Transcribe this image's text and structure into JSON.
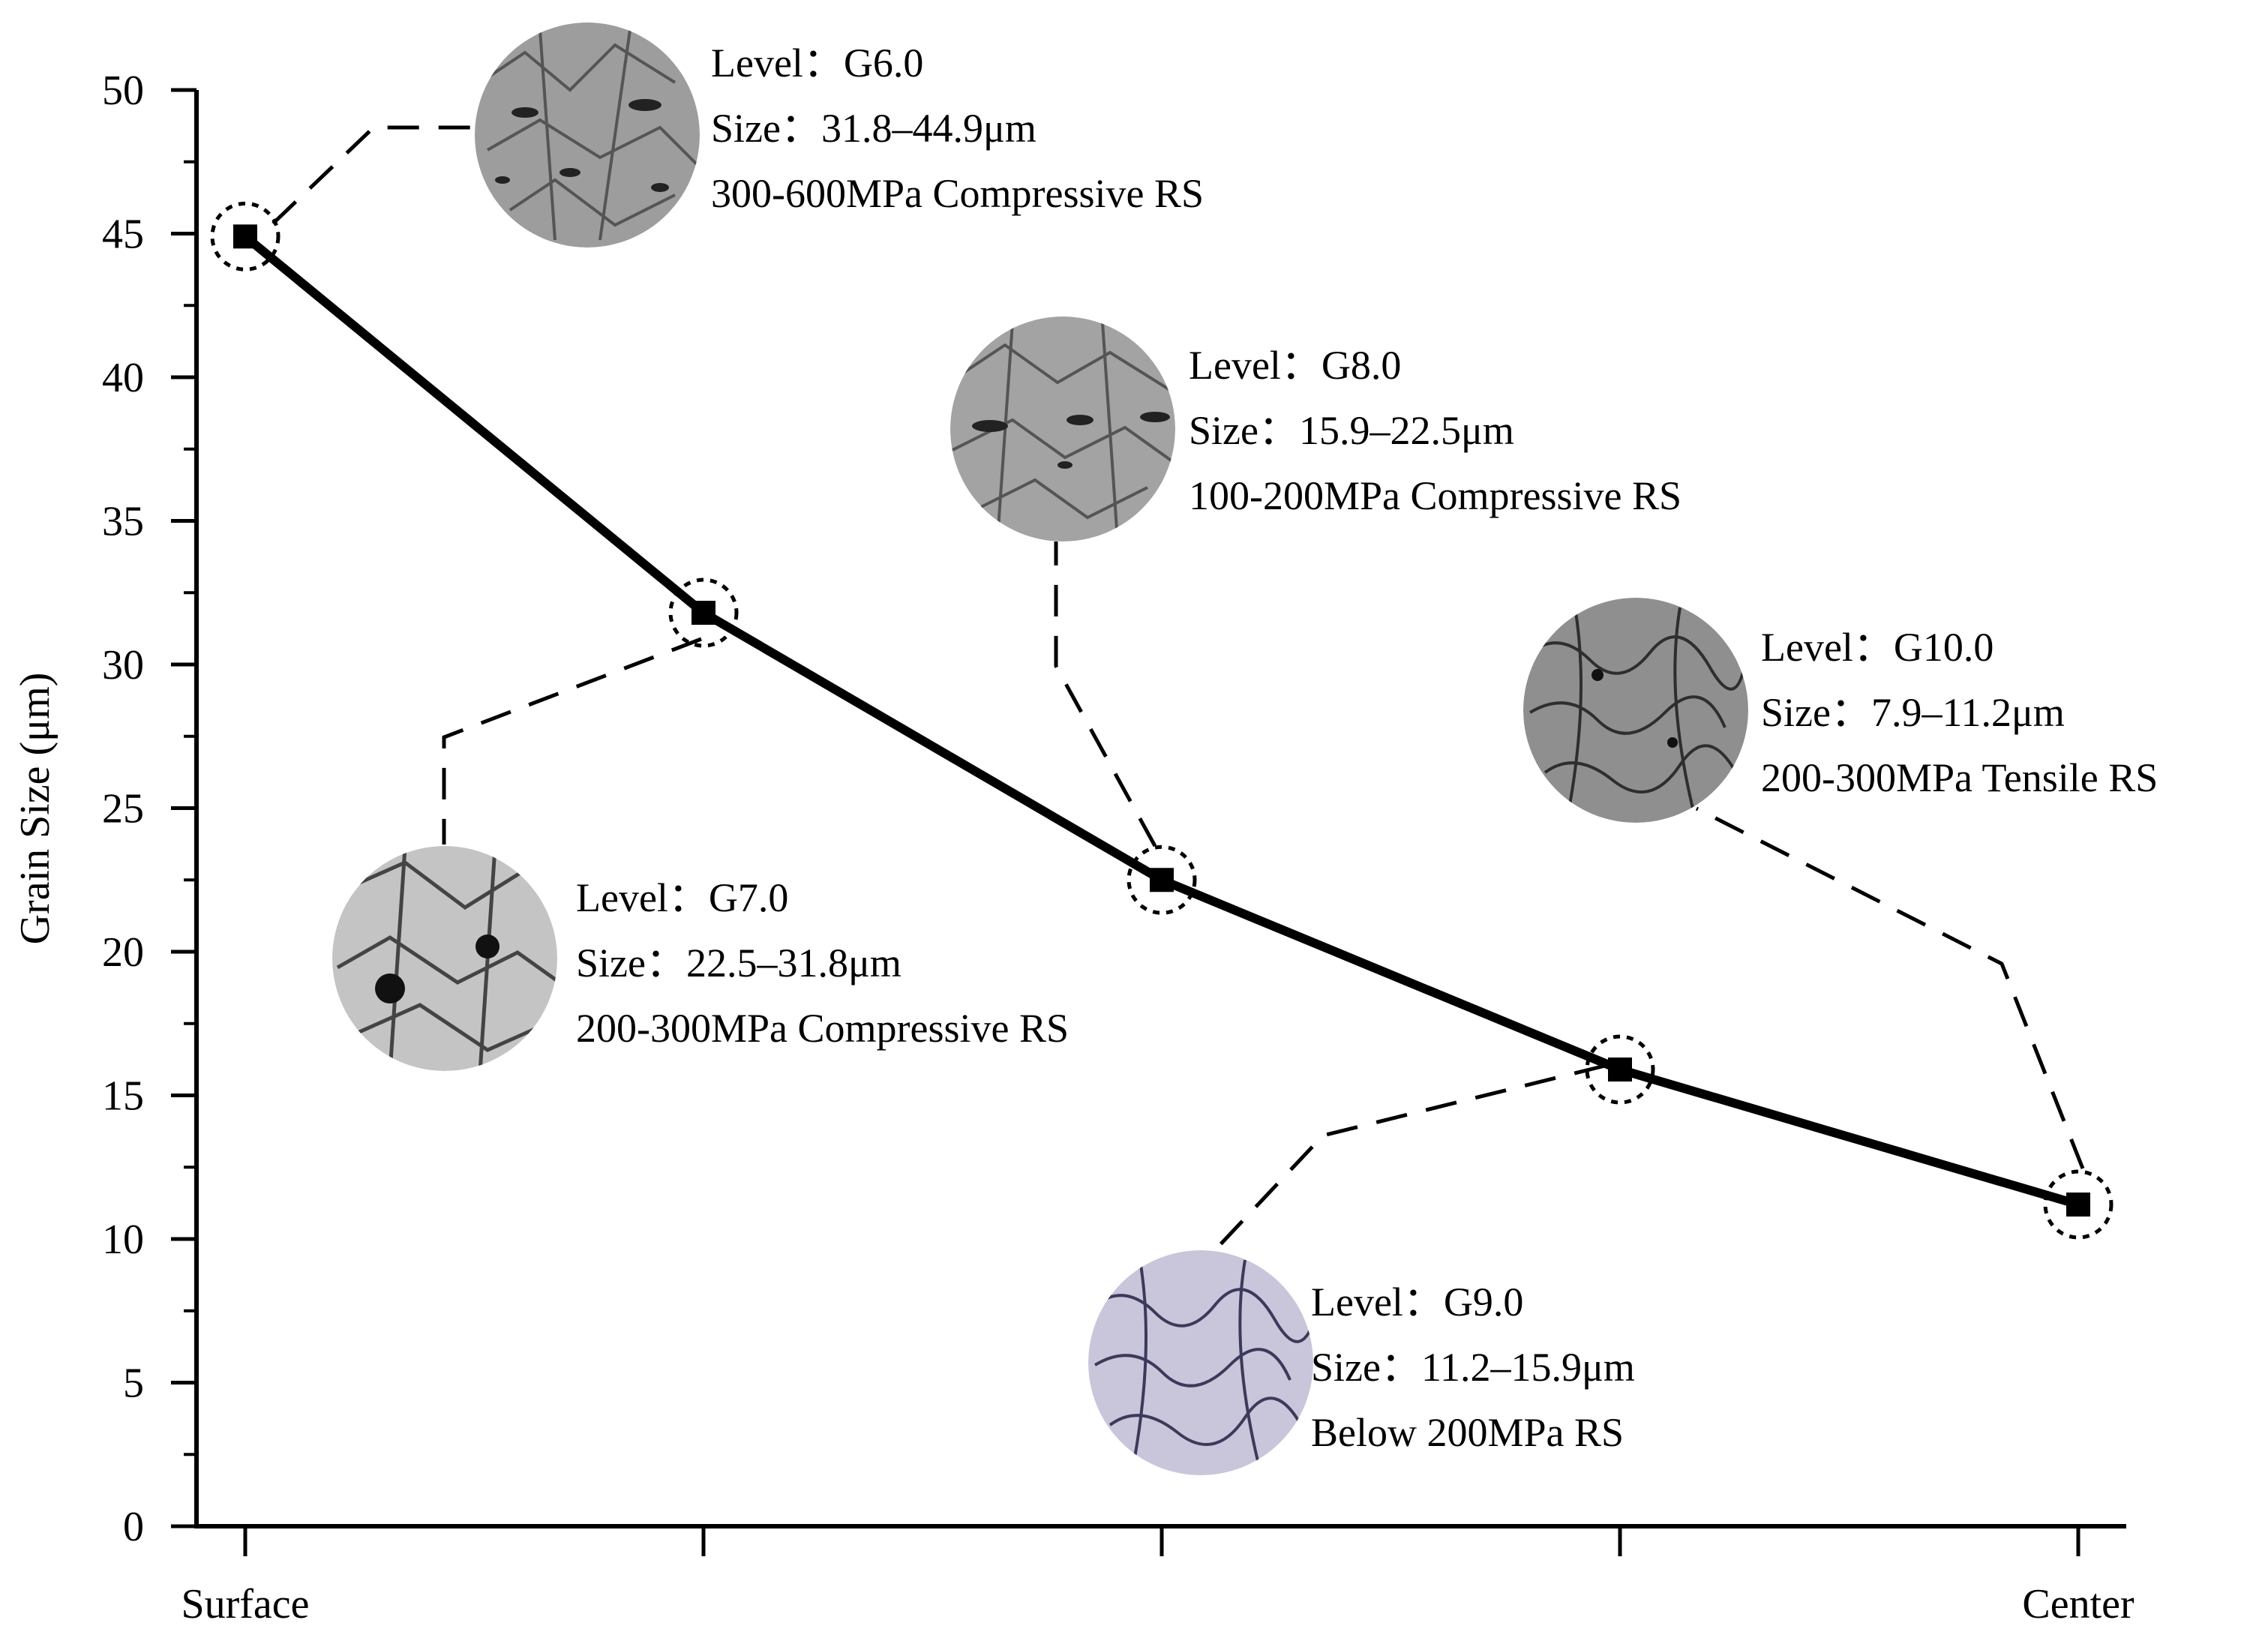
{
  "chart_data": {
    "type": "line",
    "title": "",
    "xlabel": "",
    "ylabel": "Grain Size (μm)",
    "ylim": [
      0,
      50
    ],
    "y_ticks": [
      0,
      5,
      10,
      15,
      20,
      25,
      30,
      35,
      40,
      45,
      50
    ],
    "x_tick_labels": [
      "Surface",
      "",
      "",
      "",
      "Center"
    ],
    "x": [
      0,
      1,
      2,
      3,
      4
    ],
    "series": [
      {
        "values": [
          44.9,
          31.8,
          22.5,
          15.9,
          11.2
        ]
      }
    ],
    "grid": false,
    "colors": {
      "line": "#000000",
      "leader": "#000000"
    },
    "annotations": [
      {
        "point": 0,
        "icon": "micrograph-g6-icon",
        "tone": "#9a9a9a",
        "lines": [
          "Level：G6.0",
          "Size：31.8–44.9μm",
          "300-600MPa Compressive RS"
        ]
      },
      {
        "point": 1,
        "icon": "micrograph-g7-icon",
        "tone": "#a8a8a8",
        "lines": [
          "Level：G7.0",
          "Size：22.5–31.8μm",
          "200-300MPa Compressive RS"
        ]
      },
      {
        "point": 2,
        "icon": "micrograph-g8-icon",
        "tone": "#9c9c9c",
        "lines": [
          "Level：G8.0",
          "Size：15.9–22.5μm",
          "100-200MPa Compressive RS"
        ]
      },
      {
        "point": 3,
        "icon": "micrograph-g9-icon",
        "tone": "#b4b0c8",
        "lines": [
          "Level：G9.0",
          "Size：11.2–15.9μm",
          "Below 200MPa RS"
        ]
      },
      {
        "point": 4,
        "icon": "micrograph-g10-icon",
        "tone": "#8e8e8e",
        "lines": [
          "Level：G10.0",
          "Size：7.9–11.2μm",
          "200-300MPa Tensile RS"
        ]
      }
    ]
  }
}
